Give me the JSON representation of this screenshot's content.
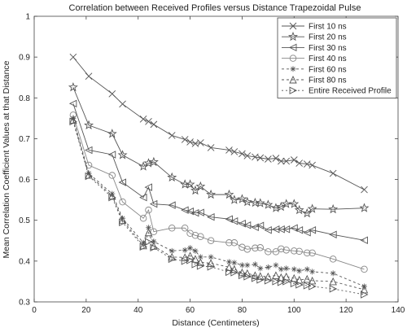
{
  "chart_data": {
    "type": "line",
    "title": "Correlation between Received Profiles versus  Distance Trapezoidal Pulse",
    "xlabel": "Distance (Centimeters)",
    "ylabel": "Mean Correlation Coefficient Values at that Distance",
    "xlim": [
      0,
      140
    ],
    "ylim": [
      0.3,
      1.0
    ],
    "xticks": [
      0,
      20,
      40,
      60,
      80,
      100,
      120,
      140
    ],
    "yticks": [
      0.3,
      0.4,
      0.5,
      0.6,
      0.7,
      0.8,
      0.9,
      1.0
    ],
    "xtick_labels": [
      "0",
      "20",
      "40",
      "60",
      "80",
      "100",
      "120",
      "140"
    ],
    "ytick_labels": [
      "0.3",
      "0.4",
      "0.5",
      "0.6",
      "0.7",
      "0.8",
      "0.9",
      "1"
    ],
    "grid": false,
    "legend_position": "top-right",
    "x": [
      15,
      21,
      30,
      34,
      42,
      44,
      46,
      53,
      58,
      60,
      62,
      64,
      68,
      75,
      77,
      80,
      82,
      85,
      87,
      90,
      93,
      95,
      97,
      100,
      102,
      105,
      107,
      115,
      127
    ],
    "series": [
      {
        "name": "First 10 ns",
        "marker": "x",
        "color": "#555555",
        "dash": "",
        "values": [
          0.9,
          0.853,
          0.81,
          0.785,
          0.748,
          0.742,
          0.735,
          0.708,
          0.698,
          0.692,
          0.688,
          0.69,
          0.678,
          0.672,
          0.668,
          0.663,
          0.658,
          0.655,
          0.653,
          0.65,
          0.652,
          0.645,
          0.645,
          0.648,
          0.64,
          0.638,
          0.635,
          0.615,
          0.575
        ]
      },
      {
        "name": "First 20 ns",
        "marker": "star",
        "color": "#555555",
        "dash": "",
        "values": [
          0.826,
          0.733,
          0.712,
          0.66,
          0.632,
          0.64,
          0.643,
          0.605,
          0.588,
          0.588,
          0.573,
          0.583,
          0.563,
          0.563,
          0.55,
          0.552,
          0.545,
          0.543,
          0.542,
          0.538,
          0.53,
          0.533,
          0.54,
          0.54,
          0.525,
          0.517,
          0.528,
          0.527,
          0.53
        ]
      },
      {
        "name": "First 30 ns",
        "marker": "triangle-left",
        "color": "#555555",
        "dash": "",
        "values": [
          0.786,
          0.672,
          0.661,
          0.593,
          0.556,
          0.581,
          0.54,
          0.537,
          0.525,
          0.522,
          0.518,
          0.519,
          0.508,
          0.503,
          0.498,
          0.492,
          0.488,
          0.483,
          0.487,
          0.476,
          0.478,
          0.478,
          0.478,
          0.481,
          0.476,
          0.47,
          0.476,
          0.465,
          0.451
        ]
      },
      {
        "name": "First 40 ns",
        "marker": "circle",
        "color": "#888888",
        "dash": "",
        "values": [
          0.758,
          0.635,
          0.61,
          0.545,
          0.505,
          0.525,
          0.472,
          0.481,
          0.481,
          0.468,
          0.463,
          0.46,
          0.45,
          0.445,
          0.445,
          0.434,
          0.429,
          0.432,
          0.433,
          0.423,
          0.423,
          0.43,
          0.427,
          0.425,
          0.424,
          0.42,
          0.42,
          0.405,
          0.38
        ]
      },
      {
        "name": "First 60 ns",
        "marker": "asterisk",
        "color": "#555555",
        "dash": "3,3",
        "values": [
          0.75,
          0.615,
          0.565,
          0.505,
          0.445,
          0.482,
          0.448,
          0.425,
          0.427,
          0.432,
          0.425,
          0.41,
          0.41,
          0.398,
          0.396,
          0.39,
          0.39,
          0.392,
          0.382,
          0.385,
          0.39,
          0.38,
          0.382,
          0.38,
          0.376,
          0.38,
          0.374,
          0.37,
          0.338
        ]
      },
      {
        "name": "First 80 ns",
        "marker": "triangle-up",
        "color": "#555555",
        "dash": "3,3",
        "values": [
          0.746,
          0.611,
          0.56,
          0.5,
          0.438,
          0.47,
          0.437,
          0.41,
          0.409,
          0.413,
          0.405,
          0.397,
          0.395,
          0.385,
          0.38,
          0.372,
          0.37,
          0.365,
          0.363,
          0.362,
          0.365,
          0.36,
          0.362,
          0.358,
          0.354,
          0.356,
          0.352,
          0.35,
          0.33
        ]
      },
      {
        "name": "Entire Received Profile",
        "marker": "triangle-right",
        "color": "#555555",
        "dash": "2,3",
        "values": [
          0.742,
          0.608,
          0.556,
          0.495,
          0.435,
          0.447,
          0.433,
          0.405,
          0.4,
          0.402,
          0.392,
          0.388,
          0.386,
          0.373,
          0.372,
          0.365,
          0.362,
          0.358,
          0.354,
          0.352,
          0.35,
          0.348,
          0.35,
          0.345,
          0.342,
          0.34,
          0.338,
          0.332,
          0.318
        ]
      }
    ]
  }
}
